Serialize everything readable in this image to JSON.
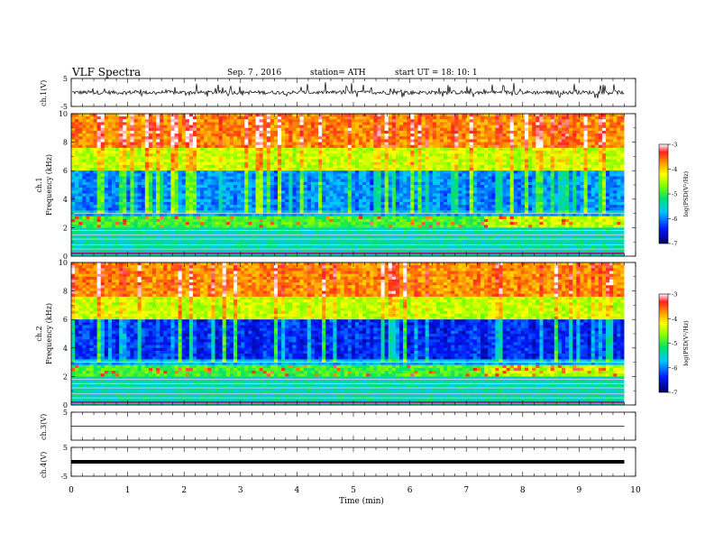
{
  "header": {
    "title": "VLF  Spectra",
    "date": "Sep. 7  , 2016",
    "station": "station= ATH",
    "start_ut": "start  UT  =    18: 10: 1"
  },
  "chart_data": [
    {
      "type": "line",
      "panel": "ch1-waveform",
      "ylabel": "ch.1(V)",
      "ylim": [
        -5,
        5
      ],
      "yticks": [
        "5",
        "-5"
      ],
      "xlim": [
        0,
        10
      ],
      "baseline": 0,
      "description_values": "noisy waveform fluctuating around 0 V with spikes roughly between -0.9 and 2 V"
    },
    {
      "type": "heatmap",
      "panel": "ch1-spectrogram",
      "ylabel": "ch.1\nFrequency  (kHz)",
      "ylim": [
        0,
        10
      ],
      "yticks": [
        "0",
        "2",
        "4",
        "6",
        "8",
        "10"
      ],
      "xlim": [
        0,
        10
      ],
      "colorbar": {
        "label": "log(PSD(V²/Hz)",
        "range": [
          -7,
          -3
        ],
        "ticks": [
          "-3",
          "-4",
          "-5",
          "-6",
          "-7"
        ]
      }
    },
    {
      "type": "heatmap",
      "panel": "ch2-spectrogram",
      "ylabel": "ch.2\nFrequency  (kHz)",
      "ylim": [
        0,
        10
      ],
      "yticks": [
        "0",
        "2",
        "4",
        "6",
        "8",
        "10"
      ],
      "xlim": [
        0,
        10
      ],
      "colorbar": {
        "label": "log(PSD(V²/Hz)",
        "range": [
          -7,
          -3
        ],
        "ticks": [
          "-3",
          "-4",
          "-5",
          "-6",
          "-7"
        ]
      }
    },
    {
      "type": "line",
      "panel": "ch3-waveform",
      "ylabel": "ch.3(V)",
      "ylim": [
        -5,
        5
      ],
      "yticks": [
        "5"
      ],
      "xlim": [
        0,
        10
      ],
      "baseline": 0
    },
    {
      "type": "line",
      "panel": "ch4-waveform",
      "ylabel": "ch.4(V)",
      "ylim": [
        -5,
        5
      ],
      "yticks": [
        "5",
        "-5"
      ],
      "xlim": [
        0,
        10
      ],
      "baseline": 0
    }
  ],
  "xaxis": {
    "label": "Time  (min)",
    "ticks": [
      "0",
      "1",
      "2",
      "3",
      "4",
      "5",
      "6",
      "7",
      "8",
      "9",
      "10"
    ]
  }
}
